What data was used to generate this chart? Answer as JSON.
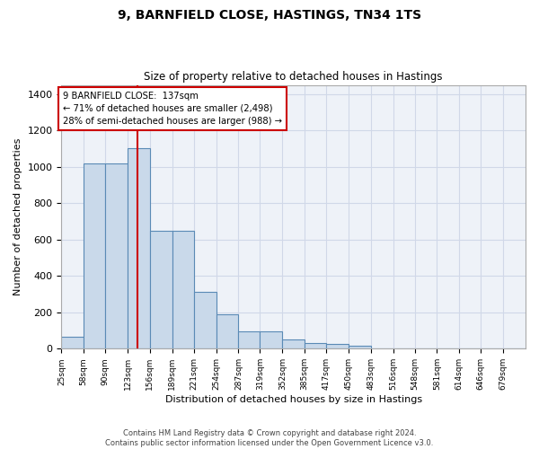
{
  "title1": "9, BARNFIELD CLOSE, HASTINGS, TN34 1TS",
  "title2": "Size of property relative to detached houses in Hastings",
  "xlabel": "Distribution of detached houses by size in Hastings",
  "ylabel": "Number of detached properties",
  "bin_labels": [
    "25sqm",
    "58sqm",
    "90sqm",
    "123sqm",
    "156sqm",
    "189sqm",
    "221sqm",
    "254sqm",
    "287sqm",
    "319sqm",
    "352sqm",
    "385sqm",
    "417sqm",
    "450sqm",
    "483sqm",
    "516sqm",
    "548sqm",
    "581sqm",
    "614sqm",
    "646sqm",
    "679sqm"
  ],
  "bin_edges": [
    25,
    58,
    90,
    123,
    156,
    189,
    221,
    254,
    287,
    319,
    352,
    385,
    417,
    450,
    483,
    516,
    548,
    581,
    614,
    646,
    679,
    712
  ],
  "bar_values": [
    65,
    1020,
    1020,
    1100,
    650,
    650,
    315,
    190,
    95,
    95,
    50,
    30,
    25,
    15,
    0,
    0,
    0,
    0,
    0,
    0,
    0
  ],
  "bar_color": "#c9d9ea",
  "bar_edge_color": "#5a8ab5",
  "bar_edge_width": 0.8,
  "property_line_x": 137,
  "property_line_color": "#cc0000",
  "ylim": [
    0,
    1450
  ],
  "yticks": [
    0,
    200,
    400,
    600,
    800,
    1000,
    1200,
    1400
  ],
  "annotation_text": "9 BARNFIELD CLOSE:  137sqm\n← 71% of detached houses are smaller (2,498)\n28% of semi-detached houses are larger (988) →",
  "annotation_box_color": "#ffffff",
  "annotation_box_edge_color": "#cc0000",
  "footer_text": "Contains HM Land Registry data © Crown copyright and database right 2024.\nContains public sector information licensed under the Open Government Licence v3.0.",
  "grid_color": "#d0d8e8",
  "background_color": "#eef2f8"
}
